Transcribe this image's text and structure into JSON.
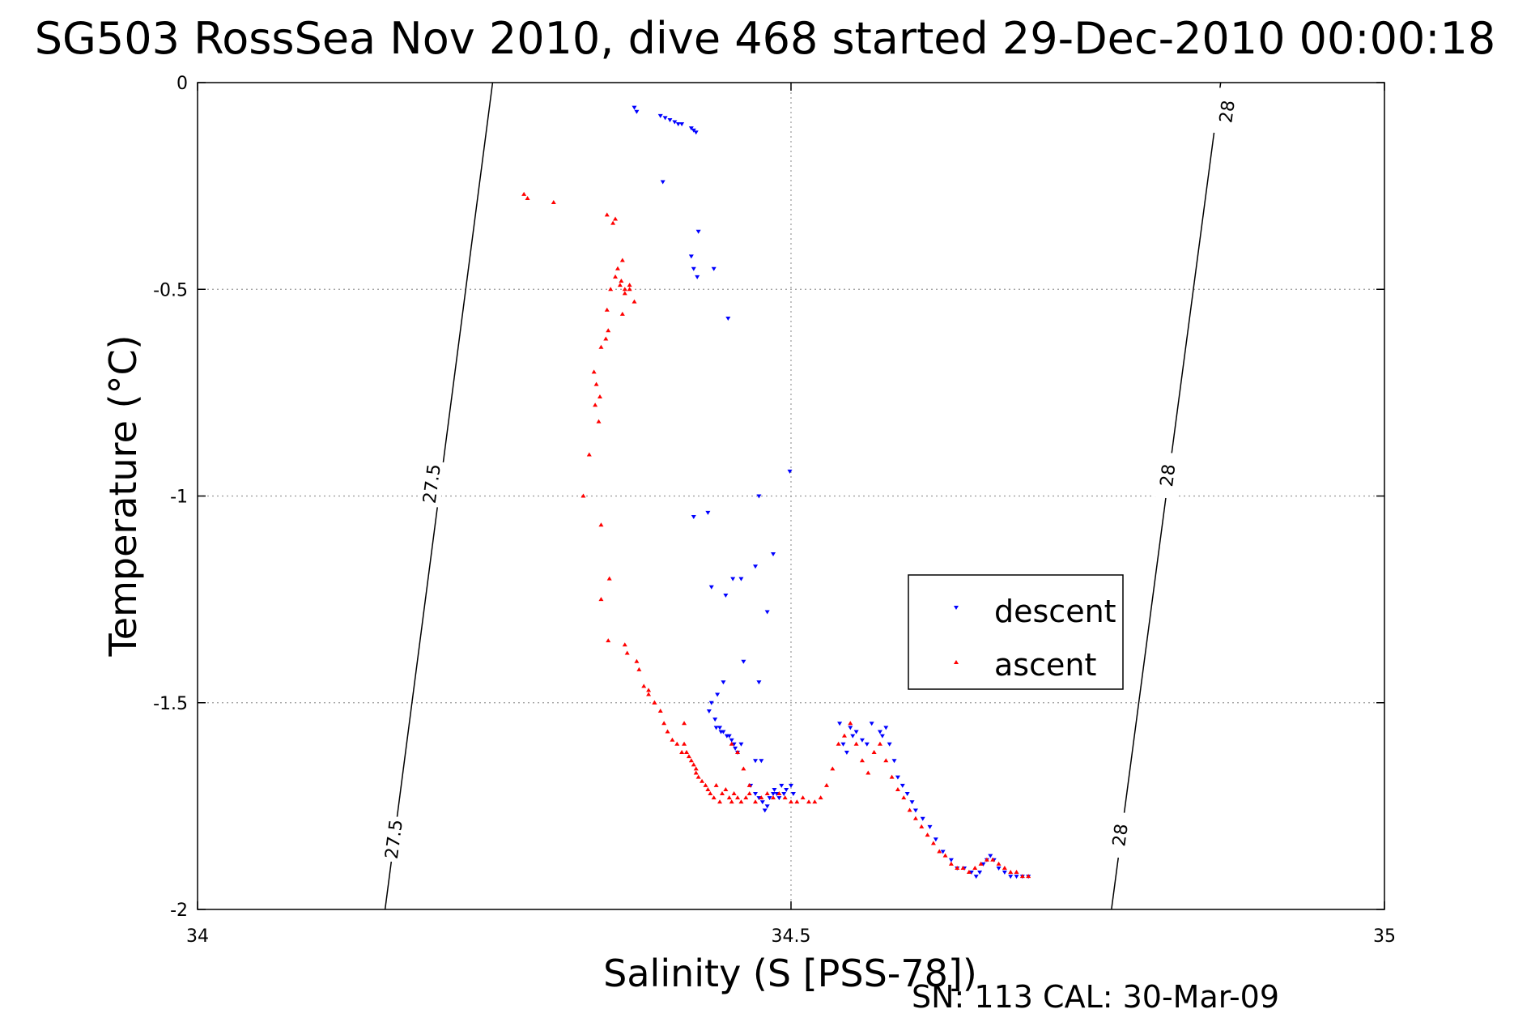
{
  "chart_data": {
    "type": "scatter",
    "title": "SG503 RossSea Nov 2010, dive 468 started 29-Dec-2010 00:00:18",
    "xlabel": "Salinity (S [PSS-78])",
    "ylabel": "Temperature (°C)",
    "xlim": [
      34,
      35
    ],
    "ylim": [
      -2,
      0
    ],
    "xticks": [
      34,
      34.5,
      35
    ],
    "xtick_labels": [
      "34",
      "34.5",
      "35"
    ],
    "yticks": [
      0,
      -0.5,
      -1,
      -1.5,
      -2
    ],
    "ytick_labels": [
      "0",
      "-0.5",
      "-1",
      "-1.5",
      "-2"
    ],
    "grid": true,
    "legend_position": "right",
    "footer": "SN: 113  CAL: 30-Mar-09",
    "contours": [
      {
        "label": "27.5",
        "points": [
          [
            34.2486,
            0
          ],
          [
            34.158,
            -2
          ]
        ],
        "label_positions": [
          [
            34.197,
            -0.97
          ],
          [
            34.165,
            -1.83
          ]
        ]
      },
      {
        "label": "28",
        "points": [
          [
            34.862,
            0
          ],
          [
            34.77,
            -2
          ]
        ],
        "label_positions": [
          [
            34.867,
            -0.07
          ],
          [
            34.817,
            -0.95
          ],
          [
            34.777,
            -1.82
          ]
        ]
      }
    ],
    "series": [
      {
        "name": "descent",
        "marker": "triangle-down",
        "color": "#0000ff",
        "x": [
          34.368,
          34.37,
          34.39,
          34.394,
          34.398,
          34.402,
          34.405,
          34.408,
          34.416,
          34.418,
          34.42,
          34.392,
          34.416,
          34.418,
          34.421,
          34.422,
          34.435,
          34.447,
          34.499,
          34.473,
          34.418,
          34.43,
          34.485,
          34.47,
          34.458,
          34.451,
          34.433,
          34.445,
          34.48,
          34.473,
          34.46,
          34.443,
          34.438,
          34.433,
          34.431,
          34.436,
          34.44,
          34.446,
          34.45,
          34.453,
          34.458,
          34.437,
          34.441,
          34.443,
          34.448,
          34.452,
          34.455,
          34.466,
          34.47,
          34.473,
          34.476,
          34.478,
          34.48,
          34.482,
          34.485,
          34.486,
          34.488,
          34.49,
          34.492,
          34.494,
          34.496,
          34.5,
          34.502,
          34.47,
          34.475,
          34.541,
          34.544,
          34.547,
          34.55,
          34.552,
          34.555,
          34.56,
          34.564,
          34.568,
          34.575,
          34.577,
          34.58,
          34.583,
          34.587,
          34.59,
          34.594,
          34.598,
          34.602,
          34.605,
          34.611,
          34.617,
          34.622,
          34.628,
          34.635,
          34.64,
          34.646,
          34.652,
          34.656,
          34.659,
          34.662,
          34.665,
          34.668,
          34.671,
          34.675,
          34.68,
          34.685,
          34.69,
          34.695,
          34.7
        ],
        "y": [
          -0.06,
          -0.07,
          -0.08,
          -0.085,
          -0.09,
          -0.095,
          -0.1,
          -0.1,
          -0.11,
          -0.115,
          -0.12,
          -0.24,
          -0.42,
          -0.45,
          -0.47,
          -0.36,
          -0.45,
          -0.57,
          -0.94,
          -1.0,
          -1.05,
          -1.04,
          -1.14,
          -1.17,
          -1.2,
          -1.2,
          -1.22,
          -1.24,
          -1.28,
          -1.45,
          -1.4,
          -1.45,
          -1.48,
          -1.5,
          -1.52,
          -1.54,
          -1.56,
          -1.58,
          -1.59,
          -1.61,
          -1.6,
          -1.56,
          -1.57,
          -1.57,
          -1.58,
          -1.6,
          -1.62,
          -1.7,
          -1.72,
          -1.73,
          -1.74,
          -1.76,
          -1.75,
          -1.73,
          -1.72,
          -1.71,
          -1.72,
          -1.73,
          -1.7,
          -1.72,
          -1.71,
          -1.7,
          -1.72,
          -1.64,
          -1.64,
          -1.55,
          -1.6,
          -1.62,
          -1.56,
          -1.58,
          -1.57,
          -1.59,
          -1.6,
          -1.55,
          -1.57,
          -1.58,
          -1.56,
          -1.6,
          -1.64,
          -1.68,
          -1.7,
          -1.72,
          -1.74,
          -1.76,
          -1.78,
          -1.8,
          -1.83,
          -1.86,
          -1.88,
          -1.9,
          -1.9,
          -1.91,
          -1.92,
          -1.91,
          -1.89,
          -1.88,
          -1.87,
          -1.88,
          -1.9,
          -1.91,
          -1.92,
          -1.92,
          -1.92,
          -1.92
        ]
      },
      {
        "name": "ascent",
        "marker": "triangle-up",
        "color": "#ff0000",
        "x": [
          34.275,
          34.278,
          34.3,
          34.345,
          34.35,
          34.352,
          34.354,
          34.358,
          34.352,
          34.356,
          34.36,
          34.357,
          34.364,
          34.345,
          34.368,
          34.36,
          34.364,
          34.358,
          34.348,
          34.346,
          34.344,
          34.34,
          34.334,
          34.336,
          34.339,
          34.335,
          34.338,
          34.33,
          34.325,
          34.34,
          34.347,
          34.34,
          34.346,
          34.36,
          34.362,
          34.37,
          34.372,
          34.376,
          34.38,
          34.385,
          34.38,
          34.385,
          34.39,
          34.393,
          34.396,
          34.4,
          34.404,
          34.408,
          34.41,
          34.41,
          34.412,
          34.414,
          34.416,
          34.418,
          34.42,
          34.42,
          34.422,
          34.425,
          34.428,
          34.43,
          34.432,
          34.435,
          34.437,
          34.44,
          34.442,
          34.445,
          34.448,
          34.45,
          34.452,
          34.455,
          34.458,
          34.462,
          34.465,
          34.47,
          34.475,
          34.48,
          34.485,
          34.49,
          34.495,
          34.5,
          34.505,
          34.51,
          34.515,
          34.52,
          34.525,
          34.53,
          34.535,
          34.54,
          34.545,
          34.55,
          34.555,
          34.56,
          34.565,
          34.57,
          34.575,
          34.58,
          34.585,
          34.59,
          34.595,
          34.6,
          34.605,
          34.61,
          34.615,
          34.62,
          34.625,
          34.63,
          34.635,
          34.64,
          34.645,
          34.65,
          34.655,
          34.66,
          34.665,
          34.67,
          34.675,
          34.68,
          34.685,
          34.69,
          34.695,
          34.7,
          34.455,
          34.46,
          34.465,
          34.45
        ],
        "y": [
          -0.27,
          -0.28,
          -0.29,
          -0.32,
          -0.34,
          -0.33,
          -0.45,
          -0.43,
          -0.47,
          -0.49,
          -0.5,
          -0.48,
          -0.5,
          -0.55,
          -0.53,
          -0.51,
          -0.49,
          -0.56,
          -0.5,
          -0.6,
          -0.62,
          -0.64,
          -0.7,
          -0.73,
          -0.76,
          -0.78,
          -0.82,
          -0.9,
          -1.0,
          -1.07,
          -1.2,
          -1.25,
          -1.35,
          -1.36,
          -1.38,
          -1.4,
          -1.42,
          -1.46,
          -1.47,
          -1.5,
          -1.48,
          -1.5,
          -1.52,
          -1.55,
          -1.57,
          -1.59,
          -1.6,
          -1.62,
          -1.55,
          -1.6,
          -1.62,
          -1.63,
          -1.64,
          -1.65,
          -1.66,
          -1.67,
          -1.68,
          -1.69,
          -1.7,
          -1.71,
          -1.72,
          -1.73,
          -1.7,
          -1.74,
          -1.72,
          -1.71,
          -1.73,
          -1.74,
          -1.72,
          -1.73,
          -1.74,
          -1.73,
          -1.72,
          -1.74,
          -1.73,
          -1.72,
          -1.73,
          -1.72,
          -1.73,
          -1.74,
          -1.74,
          -1.73,
          -1.74,
          -1.74,
          -1.73,
          -1.7,
          -1.66,
          -1.6,
          -1.58,
          -1.55,
          -1.6,
          -1.64,
          -1.67,
          -1.62,
          -1.6,
          -1.64,
          -1.68,
          -1.71,
          -1.73,
          -1.76,
          -1.78,
          -1.8,
          -1.82,
          -1.84,
          -1.86,
          -1.87,
          -1.89,
          -1.9,
          -1.9,
          -1.91,
          -1.9,
          -1.89,
          -1.88,
          -1.88,
          -1.89,
          -1.9,
          -1.91,
          -1.91,
          -1.92,
          -1.92,
          -1.62,
          -1.66,
          -1.7,
          -1.6
        ]
      }
    ]
  }
}
